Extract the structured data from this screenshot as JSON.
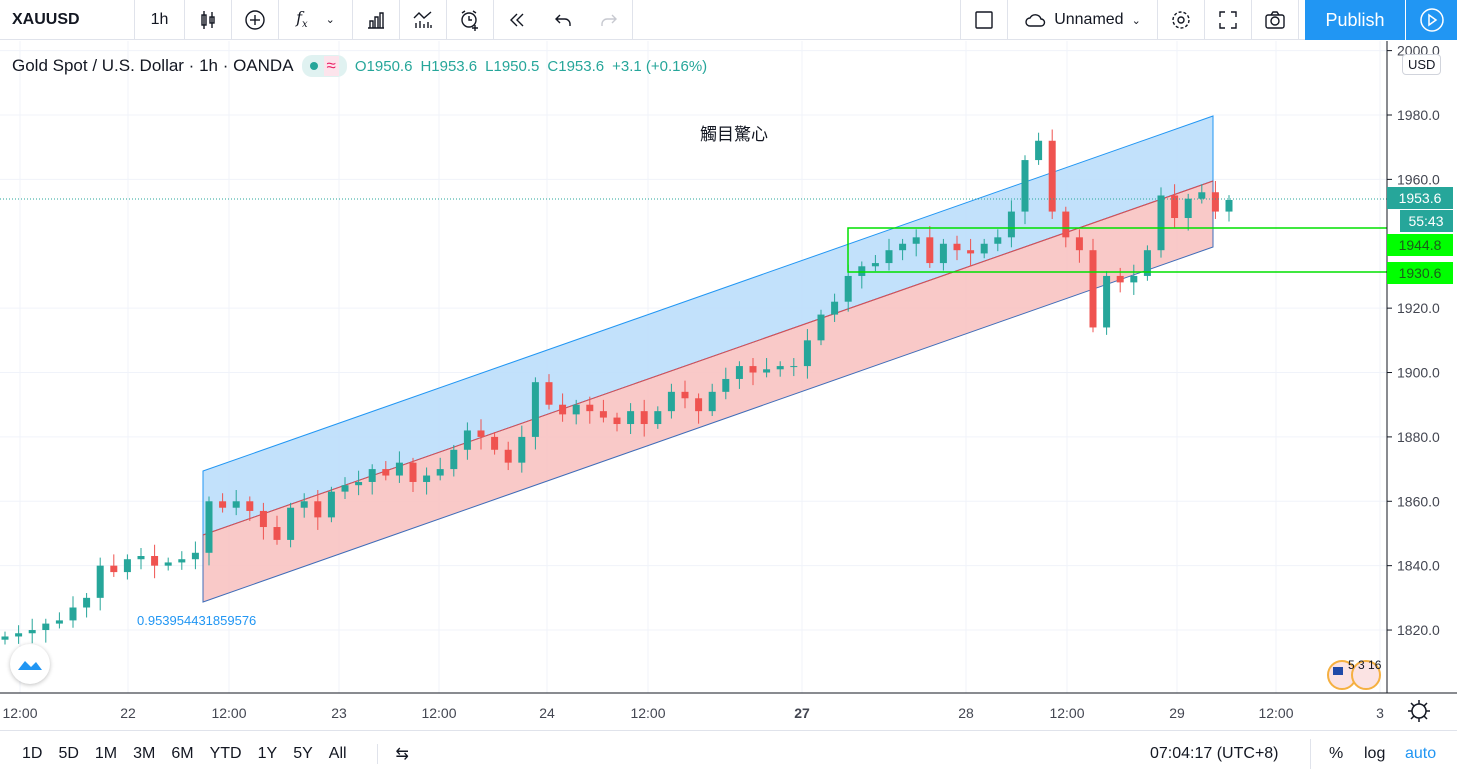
{
  "toolbar": {
    "symbol": "XAUUSD",
    "interval": "1h",
    "layout_name": "Unnamed",
    "publish": "Publish",
    "icons": [
      "candles-icon",
      "add-compare-icon",
      "indicators-icon",
      "financials-icon",
      "templates-icon",
      "alert-icon",
      "replay-icon",
      "undo-icon",
      "redo-icon",
      "fullscreen-icon",
      "settings-icon",
      "snapshot-icon",
      "cloud-icon",
      "play-icon"
    ]
  },
  "legend": {
    "title": "Gold Spot / U.S. Dollar · 1h · OANDA",
    "o": "O1950.6",
    "h": "H1953.6",
    "l": "L1950.5",
    "c": "C1953.6",
    "change": "+3.1 (+0.16%)"
  },
  "price_axis": {
    "currency": "USD",
    "ticks": [
      "2000.0",
      "1980.0",
      "1960.0",
      "1920.0",
      "1900.0",
      "1880.0",
      "1860.0",
      "1840.0",
      "1820.0"
    ],
    "last_price": "1953.6",
    "countdown": "55:43",
    "level_1": "1944.8",
    "level_2": "1930.6"
  },
  "time_axis": {
    "ticks": [
      "12:00",
      "22",
      "12:00",
      "23",
      "12:00",
      "24",
      "12:00",
      "27",
      "28",
      "12:00",
      "29",
      "12:00",
      "3"
    ]
  },
  "annotations": {
    "text": "觸目驚心",
    "channel_value": "0.953954431859576",
    "events": "5 3 16"
  },
  "bottom": {
    "ranges": [
      "1D",
      "5D",
      "1M",
      "3M",
      "6M",
      "YTD",
      "1Y",
      "5Y",
      "All"
    ],
    "clock": "07:04:17 (UTC+8)",
    "percent": "%",
    "log": "log",
    "auto": "auto"
  },
  "colors": {
    "up": "#26a69a",
    "down": "#ef5350",
    "accent": "#2196f3",
    "level": "#00ff00"
  },
  "chart_data": {
    "type": "candlestick",
    "symbol": "XAUUSD",
    "ylim": [
      1800,
      2000
    ],
    "closes": [
      1818,
      1819,
      1820,
      1822,
      1823,
      1827,
      1830,
      1840,
      1838,
      1842,
      1843,
      1840,
      1841,
      1842,
      1844,
      1860,
      1858,
      1860,
      1857,
      1852,
      1848,
      1858,
      1860,
      1855,
      1863,
      1865,
      1866,
      1870,
      1868,
      1872,
      1866,
      1868,
      1870,
      1876,
      1882,
      1880,
      1876,
      1872,
      1880,
      1897,
      1890,
      1887,
      1890,
      1888,
      1886,
      1884,
      1888,
      1884,
      1888,
      1894,
      1892,
      1888,
      1894,
      1898,
      1902,
      1900,
      1901,
      1902,
      1902,
      1910,
      1918,
      1922,
      1930,
      1933,
      1934,
      1938,
      1940,
      1942,
      1934,
      1940,
      1938,
      1937,
      1940,
      1942,
      1950,
      1966,
      1972,
      1950,
      1942,
      1938,
      1914,
      1930,
      1928,
      1930,
      1938,
      1955,
      1948,
      1954,
      1956,
      1950,
      1953.6
    ]
  }
}
